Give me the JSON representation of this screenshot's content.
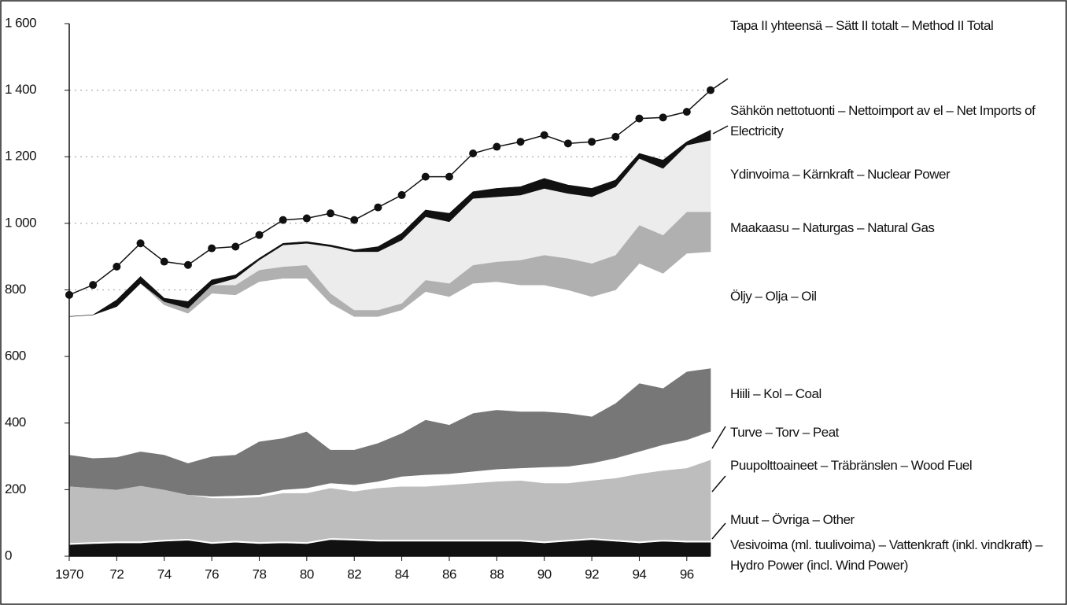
{
  "chart_data": {
    "type": "stacked-area",
    "x": [
      1970,
      1971,
      1972,
      1973,
      1974,
      1975,
      1976,
      1977,
      1978,
      1979,
      1980,
      1981,
      1982,
      1983,
      1984,
      1985,
      1986,
      1987,
      1988,
      1989,
      1990,
      1991,
      1992,
      1993,
      1994,
      1995,
      1996,
      1997
    ],
    "xlim": [
      1970,
      1997
    ],
    "xticks": [
      {
        "value": 1970,
        "label": "1970"
      },
      {
        "value": 1972,
        "label": "72"
      },
      {
        "value": 1974,
        "label": "74"
      },
      {
        "value": 1976,
        "label": "76"
      },
      {
        "value": 1978,
        "label": "78"
      },
      {
        "value": 1980,
        "label": "80"
      },
      {
        "value": 1982,
        "label": "82"
      },
      {
        "value": 1984,
        "label": "84"
      },
      {
        "value": 1986,
        "label": "86"
      },
      {
        "value": 1988,
        "label": "88"
      },
      {
        "value": 1990,
        "label": "90"
      },
      {
        "value": 1992,
        "label": "92"
      },
      {
        "value": 1994,
        "label": "94"
      },
      {
        "value": 1996,
        "label": "96"
      }
    ],
    "ylim": [
      0,
      1600
    ],
    "yticks": [
      0,
      200,
      400,
      600,
      800,
      {
        "value": 1000,
        "label": "1 000"
      },
      {
        "value": 1200,
        "label": "1 200"
      },
      {
        "value": 1400,
        "label": "1 400"
      },
      {
        "value": 1600,
        "label": "1 600"
      }
    ],
    "grid": true,
    "total": {
      "name": "Tapa II yhteensä – Sätt II totalt – Method II Total",
      "color": "#111111",
      "values": [
        785,
        815,
        870,
        940,
        885,
        875,
        925,
        930,
        965,
        1010,
        1015,
        1030,
        1010,
        1048,
        1085,
        1140,
        1140,
        1210,
        1230,
        1245,
        1265,
        1240,
        1245,
        1260,
        1315,
        1318,
        1335,
        1400
      ]
    },
    "series": [
      {
        "name": "Vesivoima (ml. tuulivoima) – Vattenkraft (inkl. vindkraft) – Hydro Power (incl. Wind Power)",
        "color": "#111111",
        "values": [
          35,
          38,
          40,
          40,
          45,
          48,
          38,
          42,
          38,
          40,
          38,
          50,
          48,
          45,
          45,
          45,
          45,
          45,
          45,
          45,
          40,
          45,
          50,
          45,
          40,
          45,
          42,
          42
        ]
      },
      {
        "name": "Muut – Övriga – Other",
        "color": "#ffffff",
        "values": [
          5,
          5,
          5,
          5,
          5,
          5,
          5,
          5,
          5,
          5,
          5,
          5,
          5,
          5,
          5,
          5,
          5,
          5,
          5,
          5,
          5,
          5,
          5,
          5,
          5,
          5,
          5,
          5
        ]
      },
      {
        "name": "Puupolttoaineet – Träbränslen – Wood Fuel",
        "color": "#bdbdbd",
        "values": [
          170,
          162,
          155,
          167,
          150,
          132,
          132,
          128,
          135,
          145,
          147,
          150,
          142,
          155,
          160,
          160,
          165,
          170,
          175,
          178,
          175,
          170,
          173,
          185,
          203,
          208,
          218,
          243
        ]
      },
      {
        "name": "Turve – Torv – Peat",
        "color": "#ffffff",
        "values": [
          0,
          0,
          0,
          0,
          0,
          0,
          5,
          7,
          7,
          10,
          15,
          15,
          20,
          20,
          30,
          35,
          33,
          35,
          37,
          37,
          48,
          50,
          52,
          60,
          67,
          77,
          85,
          85
        ]
      },
      {
        "name": "Hiili – Kol – Coal",
        "color": "#777777",
        "values": [
          95,
          90,
          98,
          103,
          105,
          95,
          120,
          123,
          160,
          155,
          170,
          100,
          105,
          115,
          130,
          165,
          147,
          175,
          178,
          170,
          167,
          160,
          140,
          165,
          205,
          170,
          205,
          190
        ]
      },
      {
        "name": "Öljy – Olja – Oil",
        "color": "#ffffff",
        "values": [
          415,
          430,
          452,
          505,
          450,
          450,
          490,
          480,
          480,
          480,
          460,
          440,
          400,
          380,
          370,
          385,
          385,
          390,
          385,
          380,
          380,
          370,
          360,
          340,
          360,
          345,
          355,
          350
        ]
      },
      {
        "name": "Maakaasu – Naturgas – Natural Gas",
        "color": "#b0b0b0",
        "values": [
          0,
          0,
          0,
          0,
          10,
          15,
          25,
          30,
          35,
          35,
          40,
          30,
          20,
          20,
          20,
          35,
          40,
          55,
          60,
          75,
          90,
          95,
          100,
          105,
          115,
          115,
          125,
          120
        ]
      },
      {
        "name": "Ydinvoima – Kärnkraft – Nuclear Power",
        "color": "#ececec",
        "values": [
          0,
          0,
          0,
          0,
          0,
          0,
          0,
          20,
          30,
          65,
          65,
          140,
          175,
          175,
          190,
          190,
          185,
          200,
          195,
          195,
          200,
          195,
          200,
          205,
          200,
          200,
          200,
          215
        ]
      },
      {
        "name": "Sähkön nettotuonti – Nettoimport av el – Net Imports of Electricity",
        "color": "#111111",
        "values": [
          0,
          0,
          20,
          20,
          10,
          20,
          15,
          10,
          5,
          5,
          5,
          5,
          5,
          15,
          20,
          20,
          25,
          20,
          25,
          25,
          30,
          25,
          25,
          20,
          15,
          25,
          10,
          30
        ]
      }
    ]
  }
}
